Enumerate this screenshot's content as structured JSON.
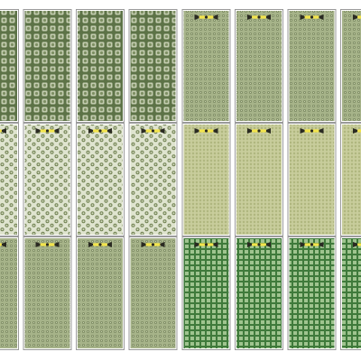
{
  "swatch_sheet": {
    "rows": [
      {
        "groups": [
          {
            "pattern": "square-lattice",
            "theme": "dark-olive",
            "tiles": 4,
            "has_marker": false
          },
          {
            "pattern": "dot-grid",
            "theme": "sage",
            "tiles": 4,
            "has_marker": true
          }
        ]
      },
      {
        "groups": [
          {
            "pattern": "hex-dots",
            "theme": "pale-sage",
            "tiles": 4,
            "has_marker": true
          },
          {
            "pattern": "fine-dot-grid",
            "theme": "pale-olive",
            "tiles": 4,
            "has_marker": true
          }
        ]
      },
      {
        "groups": [
          {
            "pattern": "dot-grid",
            "theme": "sage",
            "tiles": 4,
            "has_marker": true
          },
          {
            "pattern": "square-mesh",
            "theme": "forest-green",
            "tiles": 4,
            "has_marker": true
          }
        ]
      }
    ]
  },
  "colors": {
    "background": "#ffffff",
    "tile_border": "#9a9a9a",
    "dark_olive_base": "#5d7347",
    "dark_olive_cell": "#c4cdb0",
    "sage_base": "#a6b389",
    "sage_dot": "#7e8c64",
    "pale_sage_base": "#dfe4cf",
    "pale_sage_dot": "#6f8050",
    "pale_olive_base": "#c8cd9c",
    "pale_olive_dot": "#a3ab6d",
    "forest_base": "#3f7a3b",
    "forest_cell": "#9fc48f",
    "marker_yellow": "#f2e44c",
    "marker_dark": "#2a2a22"
  },
  "icons": {
    "tile_marker": "bow-tie-marker-icon"
  }
}
